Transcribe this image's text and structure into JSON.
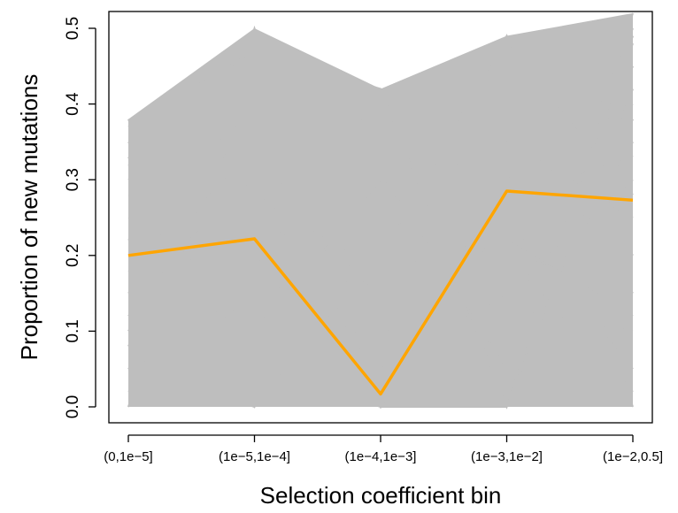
{
  "chart_data": {
    "type": "line",
    "xlabel": "Selection coefficient bin",
    "ylabel": "Proportion of new mutations",
    "categories": [
      "(0,1e−5]",
      "(1e−5,1e−4]",
      "(1e−4,1e−3]",
      "(1e−3,1e−2]",
      "(1e−2,0.5]"
    ],
    "yticks": [
      "0.0",
      "0.1",
      "0.2",
      "0.3",
      "0.4",
      "0.5"
    ],
    "ylim": [
      0,
      0.5
    ],
    "grid": false,
    "colors": {
      "highlight": "#FFA500",
      "background": "#BEBEBE"
    },
    "series": [
      {
        "values": [
          0.2,
          0.222,
          0.017,
          0.285,
          0.273
        ]
      }
    ],
    "background_range": {
      "min": [
        0.0,
        0.0,
        0.0,
        0.0,
        0.0
      ],
      "max": [
        0.38,
        0.5,
        0.42,
        0.49,
        0.52
      ]
    },
    "background_lines": [
      [
        0.38,
        0.0,
        0.2,
        0.49,
        0.0
      ],
      [
        0.0,
        0.5,
        0.0,
        0.0,
        0.52
      ],
      [
        0.37,
        0.47,
        0.42,
        0.0,
        0.49
      ],
      [
        0.0,
        0.44,
        0.37,
        0.1,
        0.5
      ],
      [
        0.3,
        0.42,
        0.31,
        0.05,
        0.48
      ],
      [
        0.05,
        0.0,
        0.23,
        0.3,
        0.4
      ],
      [
        0.2,
        0.3,
        0.0,
        0.47,
        0.2
      ],
      [
        0.35,
        0.1,
        0.24,
        0.2,
        0.02
      ],
      [
        0.1,
        0.4,
        0.05,
        0.15,
        0.3
      ],
      [
        0.25,
        0.2,
        0.0,
        0.13,
        0.1
      ],
      [
        0.15,
        0.35,
        0.1,
        0.08,
        0.45
      ],
      [
        0.02,
        0.15,
        0.2,
        0.44,
        0.33
      ],
      [
        0.33,
        0.05,
        0.0,
        0.02,
        0.38
      ],
      [
        0.28,
        0.25,
        0.15,
        0.4,
        0.15
      ],
      [
        0.08,
        0.45,
        0.0,
        0.25,
        0.05
      ],
      [
        0.18,
        0.1,
        0.3,
        0.35,
        0.25
      ],
      [
        0.12,
        0.32,
        0.02,
        0.06,
        0.35
      ],
      [
        0.32,
        0.18,
        0.08,
        0.48,
        0.28
      ],
      [
        0.22,
        0.4,
        0.12,
        0.0,
        0.42
      ],
      [
        0.05,
        0.28,
        0.18,
        0.22,
        0.12
      ]
    ]
  }
}
